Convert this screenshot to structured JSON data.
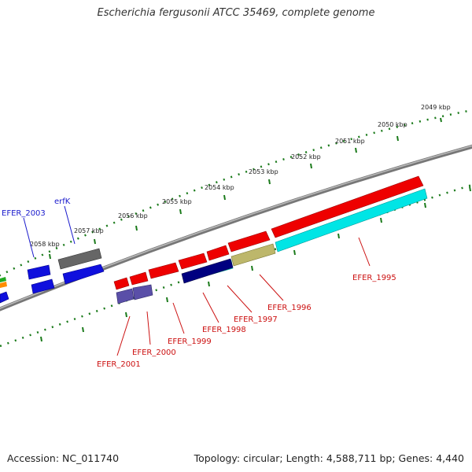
{
  "title": "Escherichia fergusonii ATCC 35469, complete genome",
  "footer": {
    "accession": "Accession: NC_011740",
    "topology": "Topology: circular; Length: 4,588,711 bp; Genes: 4,440"
  },
  "kbp_labels": [
    "2049 kbp",
    "2050 kbp",
    "2051 kbp",
    "2052 kbp",
    "2053 kbp",
    "2054 kbp",
    "2055 kbp",
    "2056 kbp",
    "2057 kbp",
    "2058 kbp"
  ],
  "gene_labels": [
    {
      "text": "EFER_2003",
      "color": "#1a1acc"
    },
    {
      "text": "erfK",
      "color": "#1a1acc"
    },
    {
      "text": "EFER_1995",
      "color": "#cc1111"
    },
    {
      "text": "EFER_1996",
      "color": "#cc1111"
    },
    {
      "text": "EFER_1997",
      "color": "#cc1111"
    },
    {
      "text": "EFER_1998",
      "color": "#cc1111"
    },
    {
      "text": "EFER_1999",
      "color": "#cc1111"
    },
    {
      "text": "EFER_2000",
      "color": "#cc1111"
    },
    {
      "text": "EFER_2001",
      "color": "#cc1111"
    }
  ],
  "colors": {
    "forward_strand": "#ee0000",
    "reverse_blue": "#1010dd",
    "navy": "#000080",
    "cyan": "#00e5e5",
    "khaki": "#bdb76b",
    "slate": "#5a4fa8",
    "grey_gene": "#666666",
    "backbone": "#888888",
    "ticks": "#1a7a1a"
  }
}
